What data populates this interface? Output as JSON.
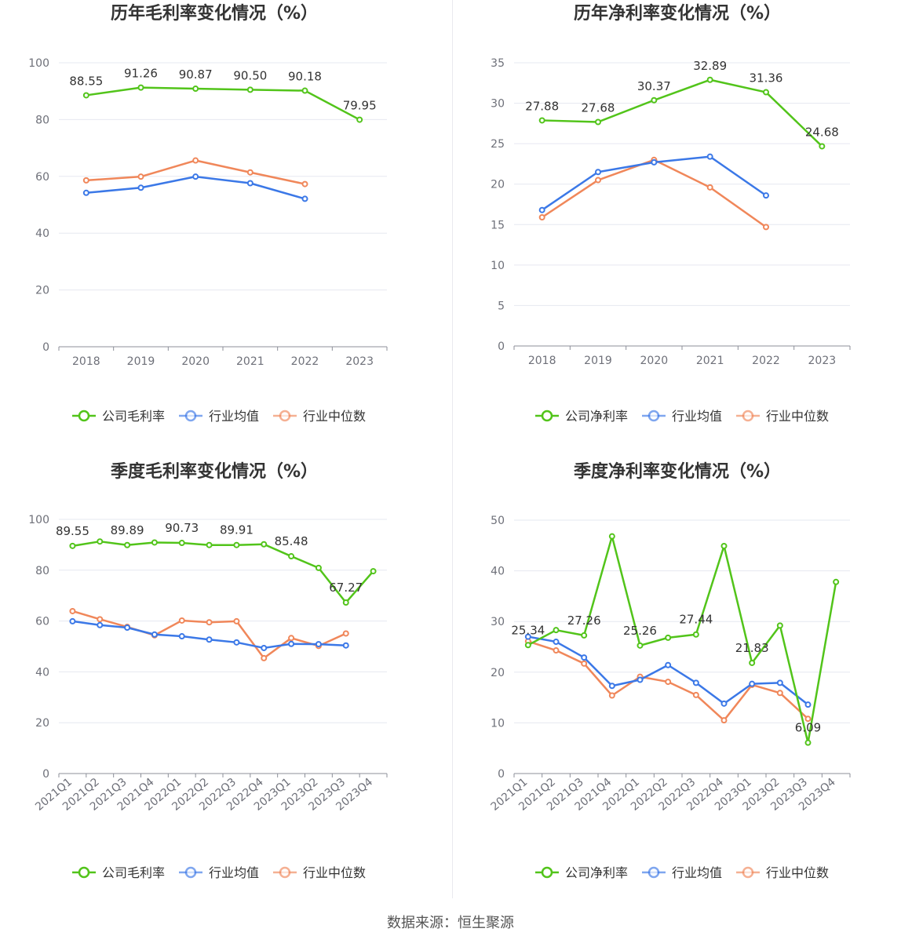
{
  "colors": {
    "company": "#52c41a",
    "avg": "#3b78e7",
    "median": "#f0875a",
    "grid": "#e6e8f0",
    "axis": "#8c8f99"
  },
  "source": "数据来源：恒生聚源",
  "chart_data": [
    {
      "type": "line",
      "title": "历年毛利率变化情况（%）",
      "categories": [
        "2018",
        "2019",
        "2020",
        "2021",
        "2022",
        "2023"
      ],
      "ylim": [
        0,
        100
      ],
      "yticks": [
        0,
        20,
        40,
        60,
        80,
        100
      ],
      "series": [
        {
          "name": "公司毛利率",
          "values": [
            88.55,
            91.26,
            90.87,
            90.5,
            90.18,
            79.95
          ]
        },
        {
          "name": "行业均值",
          "values": [
            54.2,
            56.0,
            59.9,
            57.6,
            52.1,
            null
          ]
        },
        {
          "name": "行业中位数",
          "values": [
            58.6,
            59.9,
            65.6,
            61.4,
            57.3,
            null
          ]
        }
      ],
      "data_labels": [
        "88.55",
        "91.26",
        "90.87",
        "90.50",
        "90.18",
        "79.95"
      ],
      "legend": "bottom",
      "grid": true
    },
    {
      "type": "line",
      "title": "历年净利率变化情况（%）",
      "categories": [
        "2018",
        "2019",
        "2020",
        "2021",
        "2022",
        "2023"
      ],
      "ylim": [
        0,
        35
      ],
      "yticks": [
        0,
        5,
        10,
        15,
        20,
        25,
        30,
        35
      ],
      "series": [
        {
          "name": "公司净利率",
          "values": [
            27.88,
            27.68,
            30.37,
            32.89,
            31.36,
            24.68
          ]
        },
        {
          "name": "行业均值",
          "values": [
            16.8,
            21.5,
            22.7,
            23.4,
            18.6,
            null
          ]
        },
        {
          "name": "行业中位数",
          "values": [
            15.9,
            20.5,
            23.0,
            19.6,
            14.7,
            null
          ]
        }
      ],
      "data_labels": [
        "27.88",
        "27.68",
        "30.37",
        "32.89",
        "31.36",
        "24.68"
      ],
      "legend": "bottom",
      "grid": true
    },
    {
      "type": "line",
      "title": "季度毛利率变化情况（%）",
      "categories": [
        "2021Q1",
        "2021Q2",
        "2021Q3",
        "2021Q4",
        "2022Q1",
        "2022Q2",
        "2022Q3",
        "2022Q4",
        "2023Q1",
        "2023Q2",
        "2023Q3",
        "2023Q4"
      ],
      "ylim": [
        0,
        100
      ],
      "yticks": [
        0,
        20,
        40,
        60,
        80,
        100
      ],
      "series": [
        {
          "name": "公司毛利率",
          "values": [
            89.55,
            91.3,
            89.89,
            90.9,
            90.73,
            89.9,
            89.91,
            90.2,
            85.48,
            80.9,
            67.27,
            79.6
          ]
        },
        {
          "name": "行业均值",
          "values": [
            59.9,
            58.4,
            57.4,
            54.7,
            54.0,
            52.7,
            51.6,
            49.4,
            51.0,
            50.9,
            50.4,
            null
          ]
        },
        {
          "name": "行业中位数",
          "values": [
            63.9,
            60.7,
            57.7,
            54.4,
            60.2,
            59.5,
            59.9,
            45.4,
            53.3,
            50.2,
            55.1,
            null
          ]
        }
      ],
      "data_labels": [
        "89.55",
        "",
        "89.89",
        "",
        "90.73",
        "",
        "89.91",
        "",
        "85.48",
        "",
        "67.27",
        ""
      ],
      "legend": "bottom",
      "grid": true
    },
    {
      "type": "line",
      "title": "季度净利率变化情况（%）",
      "categories": [
        "2021Q1",
        "2021Q2",
        "2021Q3",
        "2021Q4",
        "2022Q1",
        "2022Q2",
        "2022Q3",
        "2022Q4",
        "2023Q1",
        "2023Q2",
        "2023Q3",
        "2023Q4"
      ],
      "ylim": [
        0,
        50
      ],
      "yticks": [
        0,
        10,
        20,
        30,
        40,
        50
      ],
      "series": [
        {
          "name": "公司净利率",
          "values": [
            25.34,
            28.3,
            27.26,
            46.8,
            25.26,
            26.8,
            27.44,
            44.9,
            21.83,
            29.2,
            6.09,
            37.8
          ]
        },
        {
          "name": "行业均值",
          "values": [
            27.0,
            26.0,
            22.9,
            17.3,
            18.5,
            21.4,
            17.9,
            13.8,
            17.7,
            17.9,
            13.6,
            null
          ]
        },
        {
          "name": "行业中位数",
          "values": [
            26.1,
            24.3,
            21.7,
            15.4,
            19.1,
            18.1,
            15.5,
            10.5,
            17.5,
            15.9,
            10.8,
            null
          ]
        }
      ],
      "data_labels": [
        "25.34",
        "",
        "27.26",
        "",
        "25.26",
        "",
        "27.44",
        "",
        "21.83",
        "",
        "6.09",
        ""
      ],
      "legend": "bottom",
      "grid": true
    }
  ]
}
